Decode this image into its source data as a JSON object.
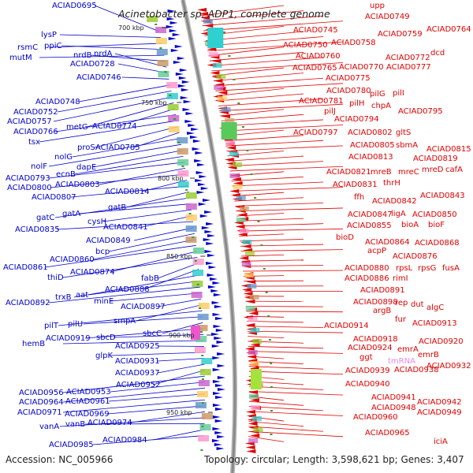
{
  "title": "Acinetobacter sp. ADP1, complete genome",
  "accession": "Accession: NC_005966",
  "summary": "Topology: circular; Length: 3,598,621 bp; Genes: 3,407",
  "scale_ticks": [
    "700 kbp",
    "750 kbp",
    "800 kbp",
    "850 kbp",
    "900 kbp",
    "950 kbp"
  ],
  "colors": {
    "forward": "#0000c8",
    "reverse": "#e00000",
    "rna": "#e68be6",
    "backbone": "#8a8a8a"
  },
  "left_labels": [
    "ACIAD0695",
    "lysP",
    "rsmC",
    "ppiC",
    "mutM",
    "nrdB",
    "nrdA",
    "ACIAD0728",
    "ACIAD0746",
    "ACIAD0748",
    "ACIAD0752",
    "ACIAD0757",
    "metG",
    "ACIAD0774",
    "ACIAD0766",
    "tsx",
    "proS",
    "ACIAD0785",
    "nolG",
    "nolF",
    "dapE",
    "ecnB",
    "ACIAD0793",
    "ACIAD0803",
    "ACIAD0800",
    "ACIAD0814",
    "ACIAD0807",
    "gatB",
    "gatC",
    "gatA",
    "cysH",
    "ACIAD0841",
    "ACIAD0835",
    "ACIAD0849",
    "bcp",
    "ACIAD0860",
    "ACIAD0861",
    "ACIAD0874",
    "thiD",
    "fabB",
    "ACIAD0888",
    "trxB",
    "aat",
    "ACIAD0892",
    "minE",
    "ACIAD0897",
    "smpA",
    "pilT",
    "pilU",
    "sbcC",
    "ACIAD0919",
    "sbcD",
    "hemB",
    "ACIAD0925",
    "glpK",
    "ACIAD0931",
    "ACIAD0937",
    "ACIAD0952",
    "ACIAD0956",
    "ACIAD0953",
    "ACIAD0964",
    "ACIAD0961",
    "ACIAD0971",
    "ACIAD0969",
    "ACIAD0974",
    "vanA",
    "vanB",
    "ACIAD0984",
    "ACIAD0985"
  ],
  "right_labels": [
    "upp",
    "ACIAD0749",
    "ACIAD0745",
    "ACIAD0759",
    "ACIAD0764",
    "ACIAD0750",
    "ACIAD0758",
    "ACIAD0760",
    "ACIAD0772",
    "dcd",
    "ACIAD0765",
    "ACIAD0770",
    "ACIAD0777",
    "ACIAD0775",
    "ACIAD0780",
    "pilG",
    "pilI",
    "ACIAD0781",
    "pilH",
    "chpA",
    "pilJ",
    "ACIAD0795",
    "ACIAD0794",
    "ACIAD0797",
    "ACIAD0802",
    "gltS",
    "ACIAD0805",
    "sbmA",
    "ACIAD0815",
    "ACIAD0813",
    "ACIAD0819",
    "ACIAD0821",
    "mreB",
    "mreC",
    "mreD",
    "cafA",
    "ACIAD0831",
    "thrH",
    "ffh",
    "ACIAD0842",
    "ACIAD0843",
    "ACIAD0847",
    "ligA",
    "ACIAD0850",
    "ACIAD0855",
    "bioA",
    "bioF",
    "bioD",
    "ACIAD0864",
    "ACIAD0868",
    "acpP",
    "ACIAD0876",
    "ACIAD0880",
    "rpsL",
    "rpsG",
    "fusA",
    "ACIAD0886",
    "rimI",
    "ACIAD0891",
    "ACIAD0898",
    "rep",
    "dut",
    "algC",
    "argB",
    "fur",
    "ACIAD0914",
    "ACIAD0913",
    "ACIAD0918",
    "ACIAD0920",
    "ACIAD0924",
    "emrA",
    "ggt",
    "emrB",
    "tmRNA",
    "ACIAD0932",
    "ACIAD0939",
    "ACIAD0938",
    "ACIAD0940",
    "ACIAD0941",
    "ACIAD0942",
    "ACIAD0948",
    "ACIAD0949",
    "ACIAD0960",
    "ACIAD0965",
    "iciA"
  ]
}
